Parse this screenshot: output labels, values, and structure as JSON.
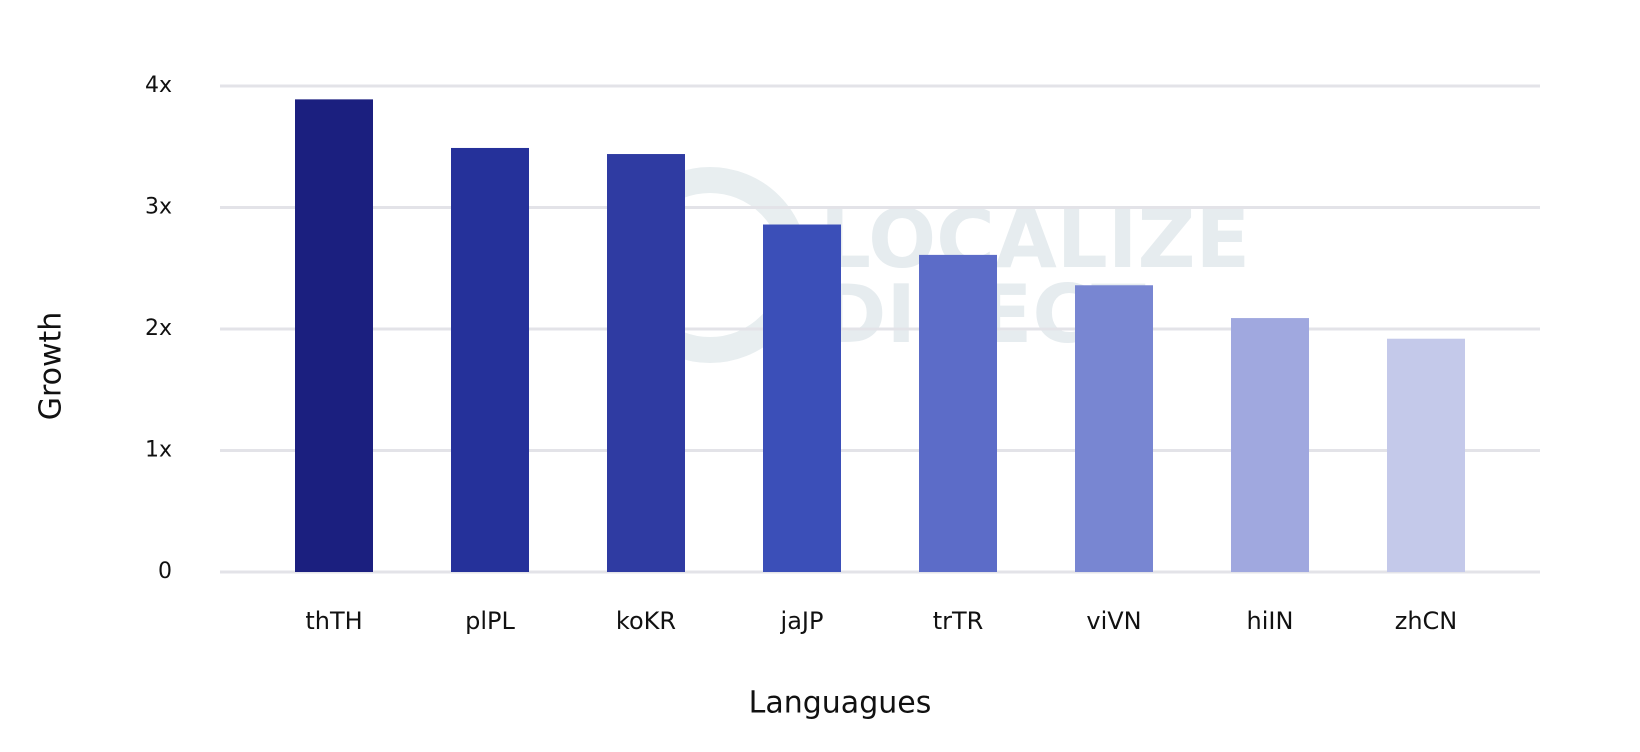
{
  "chart_data": {
    "type": "bar",
    "x_label": "Languagues",
    "y_label": "Growth",
    "watermark": [
      "LOCALIZE",
      "DIRECT"
    ],
    "categories": [
      "thTH",
      "plPL",
      "koKR",
      "jaJP",
      "trTR",
      "viVN",
      "hiIN",
      "zhCN"
    ],
    "values": [
      3.89,
      3.49,
      3.44,
      2.86,
      2.61,
      2.36,
      2.09,
      1.92
    ],
    "colors": [
      "#1b1f7f",
      "#25319a",
      "#2f3ba2",
      "#3b4fb8",
      "#5c6cc8",
      "#7886d2",
      "#a0a8df",
      "#c4c9ea"
    ],
    "ylim": [
      0,
      4
    ],
    "yticks": [
      0,
      {
        "value": 1,
        "label": "1x"
      },
      {
        "value": 2,
        "label": "2x"
      },
      {
        "value": 3,
        "label": "3x"
      },
      {
        "value": 4,
        "label": "4x"
      }
    ],
    "grid": true
  }
}
